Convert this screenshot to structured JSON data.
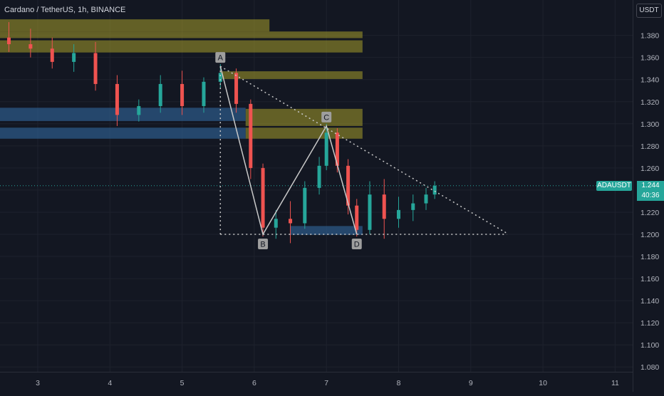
{
  "header": {
    "title": "Cardano / TetherUS, 1h, BINANCE"
  },
  "currency_button": "USDT",
  "last_price": {
    "symbol": "ADAUSDT",
    "price": "1.244",
    "countdown": "40:36"
  },
  "colors": {
    "background": "#131722",
    "grid": "#1e222d",
    "up": "#26a69a",
    "down": "#ef5350",
    "supply_zone": "#a69c2a",
    "demand_zone": "#2d5d8c",
    "pattern_line": "#c8c8c8"
  },
  "chart_data": {
    "type": "candlestick",
    "symbol": "ADAUSDT",
    "interval": "1h",
    "exchange": "BINANCE",
    "x_axis": {
      "ticks": [
        "3",
        "4",
        "5",
        "6",
        "7",
        "8",
        "9",
        "10",
        "11"
      ]
    },
    "y_axis": {
      "range": [
        1.07,
        1.405
      ],
      "ticks": [
        "1.380",
        "1.360",
        "1.340",
        "1.320",
        "1.300",
        "1.280",
        "1.260",
        "1.240",
        "1.220",
        "1.200",
        "1.180",
        "1.160",
        "1.140",
        "1.120",
        "1.100",
        "1.080"
      ]
    },
    "pattern": {
      "points": [
        {
          "label": "A",
          "day": 5.53,
          "price": 1.352
        },
        {
          "label": "B",
          "day": 6.12,
          "price": 1.2
        },
        {
          "label": "C",
          "day": 7.0,
          "price": 1.298
        },
        {
          "label": "D",
          "day": 7.42,
          "price": 1.2
        }
      ],
      "upper_trendline": {
        "from": {
          "day": 5.53,
          "price": 1.352
        },
        "to": {
          "day": 9.5,
          "price": 1.201
        }
      },
      "lower_line": {
        "from": {
          "day": 5.53,
          "price": 1.2
        },
        "to": {
          "day": 9.5,
          "price": 1.2
        }
      },
      "vertical_line": {
        "day": 5.53,
        "from": 1.352,
        "to": 1.2
      }
    },
    "zones": [
      {
        "kind": "supply",
        "day_start": 2.0,
        "day_end": 6.21,
        "price_low": 1.3835,
        "price_high": 1.3945
      },
      {
        "kind": "supply",
        "day_start": 2.0,
        "day_end": 7.5,
        "price_low": 1.3775,
        "price_high": 1.3835
      },
      {
        "kind": "supply",
        "day_start": 2.0,
        "day_end": 7.5,
        "price_low": 1.3645,
        "price_high": 1.3755
      },
      {
        "kind": "supply",
        "day_start": 5.53,
        "day_end": 7.5,
        "price_low": 1.3405,
        "price_high": 1.3475
      },
      {
        "kind": "supply",
        "day_start": 5.88,
        "day_end": 7.5,
        "price_low": 1.298,
        "price_high": 1.3135
      },
      {
        "kind": "supply",
        "day_start": 5.88,
        "day_end": 7.5,
        "price_low": 1.2865,
        "price_high": 1.2965
      },
      {
        "kind": "demand",
        "day_start": 2.0,
        "day_end": 5.88,
        "price_low": 1.3025,
        "price_high": 1.3145
      },
      {
        "kind": "demand",
        "day_start": 2.0,
        "day_end": 5.88,
        "price_low": 1.2865,
        "price_high": 1.2965
      },
      {
        "kind": "demand",
        "day_start": 6.5,
        "day_end": 7.5,
        "price_low": 1.1995,
        "price_high": 1.2075
      }
    ],
    "price_line": 1.244,
    "candles_approx": [
      {
        "day": 2.0,
        "o": 1.358,
        "h": 1.366,
        "c": 1.362,
        "l": 1.353
      },
      {
        "day": 2.3,
        "o": 1.362,
        "h": 1.388,
        "c": 1.378,
        "l": 1.357
      },
      {
        "day": 2.6,
        "o": 1.378,
        "h": 1.392,
        "c": 1.372,
        "l": 1.365
      },
      {
        "day": 2.9,
        "o": 1.372,
        "h": 1.386,
        "c": 1.368,
        "l": 1.36
      },
      {
        "day": 3.2,
        "o": 1.368,
        "h": 1.378,
        "c": 1.356,
        "l": 1.35
      },
      {
        "day": 3.5,
        "o": 1.356,
        "h": 1.372,
        "c": 1.364,
        "l": 1.347
      },
      {
        "day": 3.8,
        "o": 1.364,
        "h": 1.374,
        "c": 1.336,
        "l": 1.33
      },
      {
        "day": 4.1,
        "o": 1.336,
        "h": 1.344,
        "c": 1.308,
        "l": 1.298
      },
      {
        "day": 4.4,
        "o": 1.308,
        "h": 1.322,
        "c": 1.316,
        "l": 1.302
      },
      {
        "day": 4.7,
        "o": 1.316,
        "h": 1.344,
        "c": 1.336,
        "l": 1.31
      },
      {
        "day": 5.0,
        "o": 1.336,
        "h": 1.348,
        "c": 1.316,
        "l": 1.308
      },
      {
        "day": 5.3,
        "o": 1.316,
        "h": 1.342,
        "c": 1.338,
        "l": 1.31
      },
      {
        "day": 5.53,
        "o": 1.338,
        "h": 1.354,
        "c": 1.346,
        "l": 1.332
      },
      {
        "day": 5.75,
        "o": 1.346,
        "h": 1.35,
        "c": 1.318,
        "l": 1.31
      },
      {
        "day": 5.95,
        "o": 1.318,
        "h": 1.322,
        "c": 1.26,
        "l": 1.25
      },
      {
        "day": 6.12,
        "o": 1.26,
        "h": 1.264,
        "c": 1.206,
        "l": 1.198
      },
      {
        "day": 6.3,
        "o": 1.206,
        "h": 1.222,
        "c": 1.214,
        "l": 1.196
      },
      {
        "day": 6.5,
        "o": 1.214,
        "h": 1.23,
        "c": 1.21,
        "l": 1.192
      },
      {
        "day": 6.7,
        "o": 1.21,
        "h": 1.248,
        "c": 1.242,
        "l": 1.205
      },
      {
        "day": 6.9,
        "o": 1.242,
        "h": 1.27,
        "c": 1.262,
        "l": 1.236
      },
      {
        "day": 7.0,
        "o": 1.262,
        "h": 1.3,
        "c": 1.292,
        "l": 1.258
      },
      {
        "day": 7.15,
        "o": 1.292,
        "h": 1.296,
        "c": 1.262,
        "l": 1.256
      },
      {
        "day": 7.3,
        "o": 1.262,
        "h": 1.268,
        "c": 1.226,
        "l": 1.218
      },
      {
        "day": 7.42,
        "o": 1.226,
        "h": 1.232,
        "c": 1.204,
        "l": 1.198
      },
      {
        "day": 7.6,
        "o": 1.204,
        "h": 1.248,
        "c": 1.236,
        "l": 1.2
      },
      {
        "day": 7.8,
        "o": 1.236,
        "h": 1.25,
        "c": 1.214,
        "l": 1.196
      },
      {
        "day": 8.0,
        "o": 1.214,
        "h": 1.234,
        "c": 1.222,
        "l": 1.206
      },
      {
        "day": 8.2,
        "o": 1.222,
        "h": 1.236,
        "c": 1.228,
        "l": 1.212
      },
      {
        "day": 8.38,
        "o": 1.228,
        "h": 1.242,
        "c": 1.236,
        "l": 1.222
      },
      {
        "day": 8.5,
        "o": 1.236,
        "h": 1.248,
        "c": 1.244,
        "l": 1.232
      }
    ]
  }
}
